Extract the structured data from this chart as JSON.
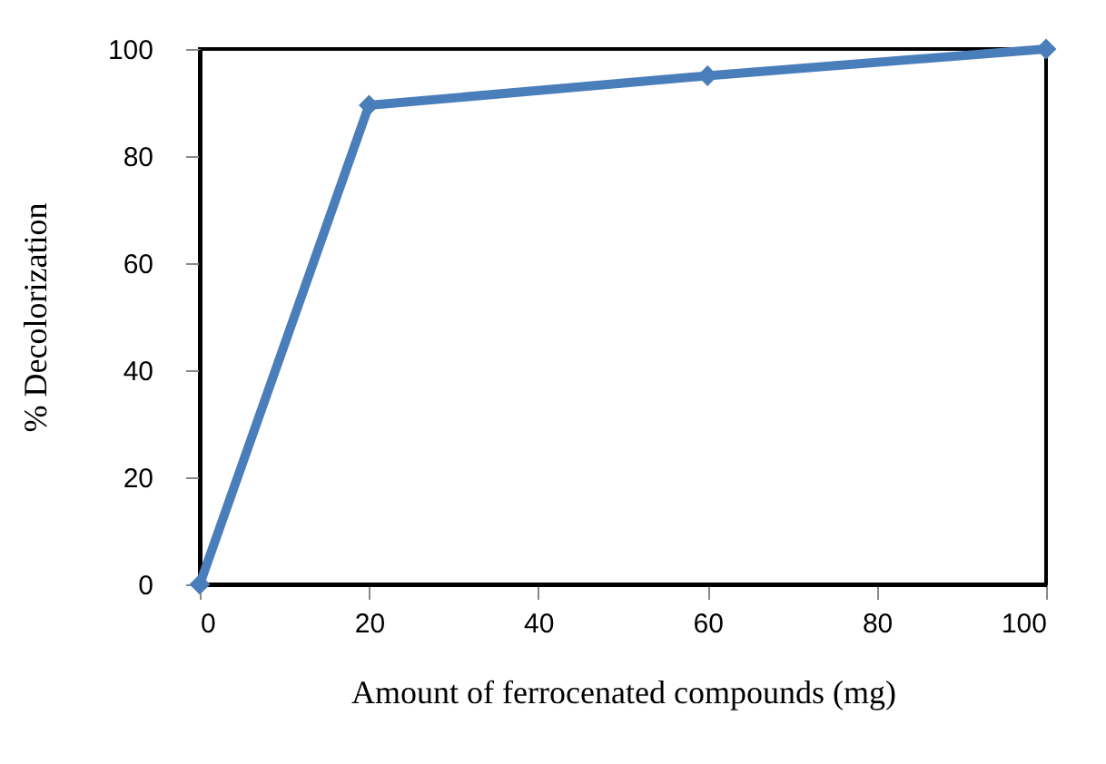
{
  "chart_data": {
    "type": "line",
    "xlabel": "Amount of ferrocenated compounds (mg)",
    "ylabel": "% Decolorization",
    "x": [
      0,
      20,
      60,
      100
    ],
    "series": [
      {
        "color": "#4a7ebb",
        "values": [
          0,
          89.5,
          95,
          100
        ]
      }
    ],
    "xlim": [
      0,
      100
    ],
    "xticks": [
      0,
      20,
      40,
      60,
      80,
      100
    ],
    "ylim": [
      0,
      100
    ],
    "yticks": [
      0,
      20,
      40,
      60,
      80,
      100
    ],
    "grid": false,
    "marker": "diamond",
    "line_style": "solid"
  }
}
